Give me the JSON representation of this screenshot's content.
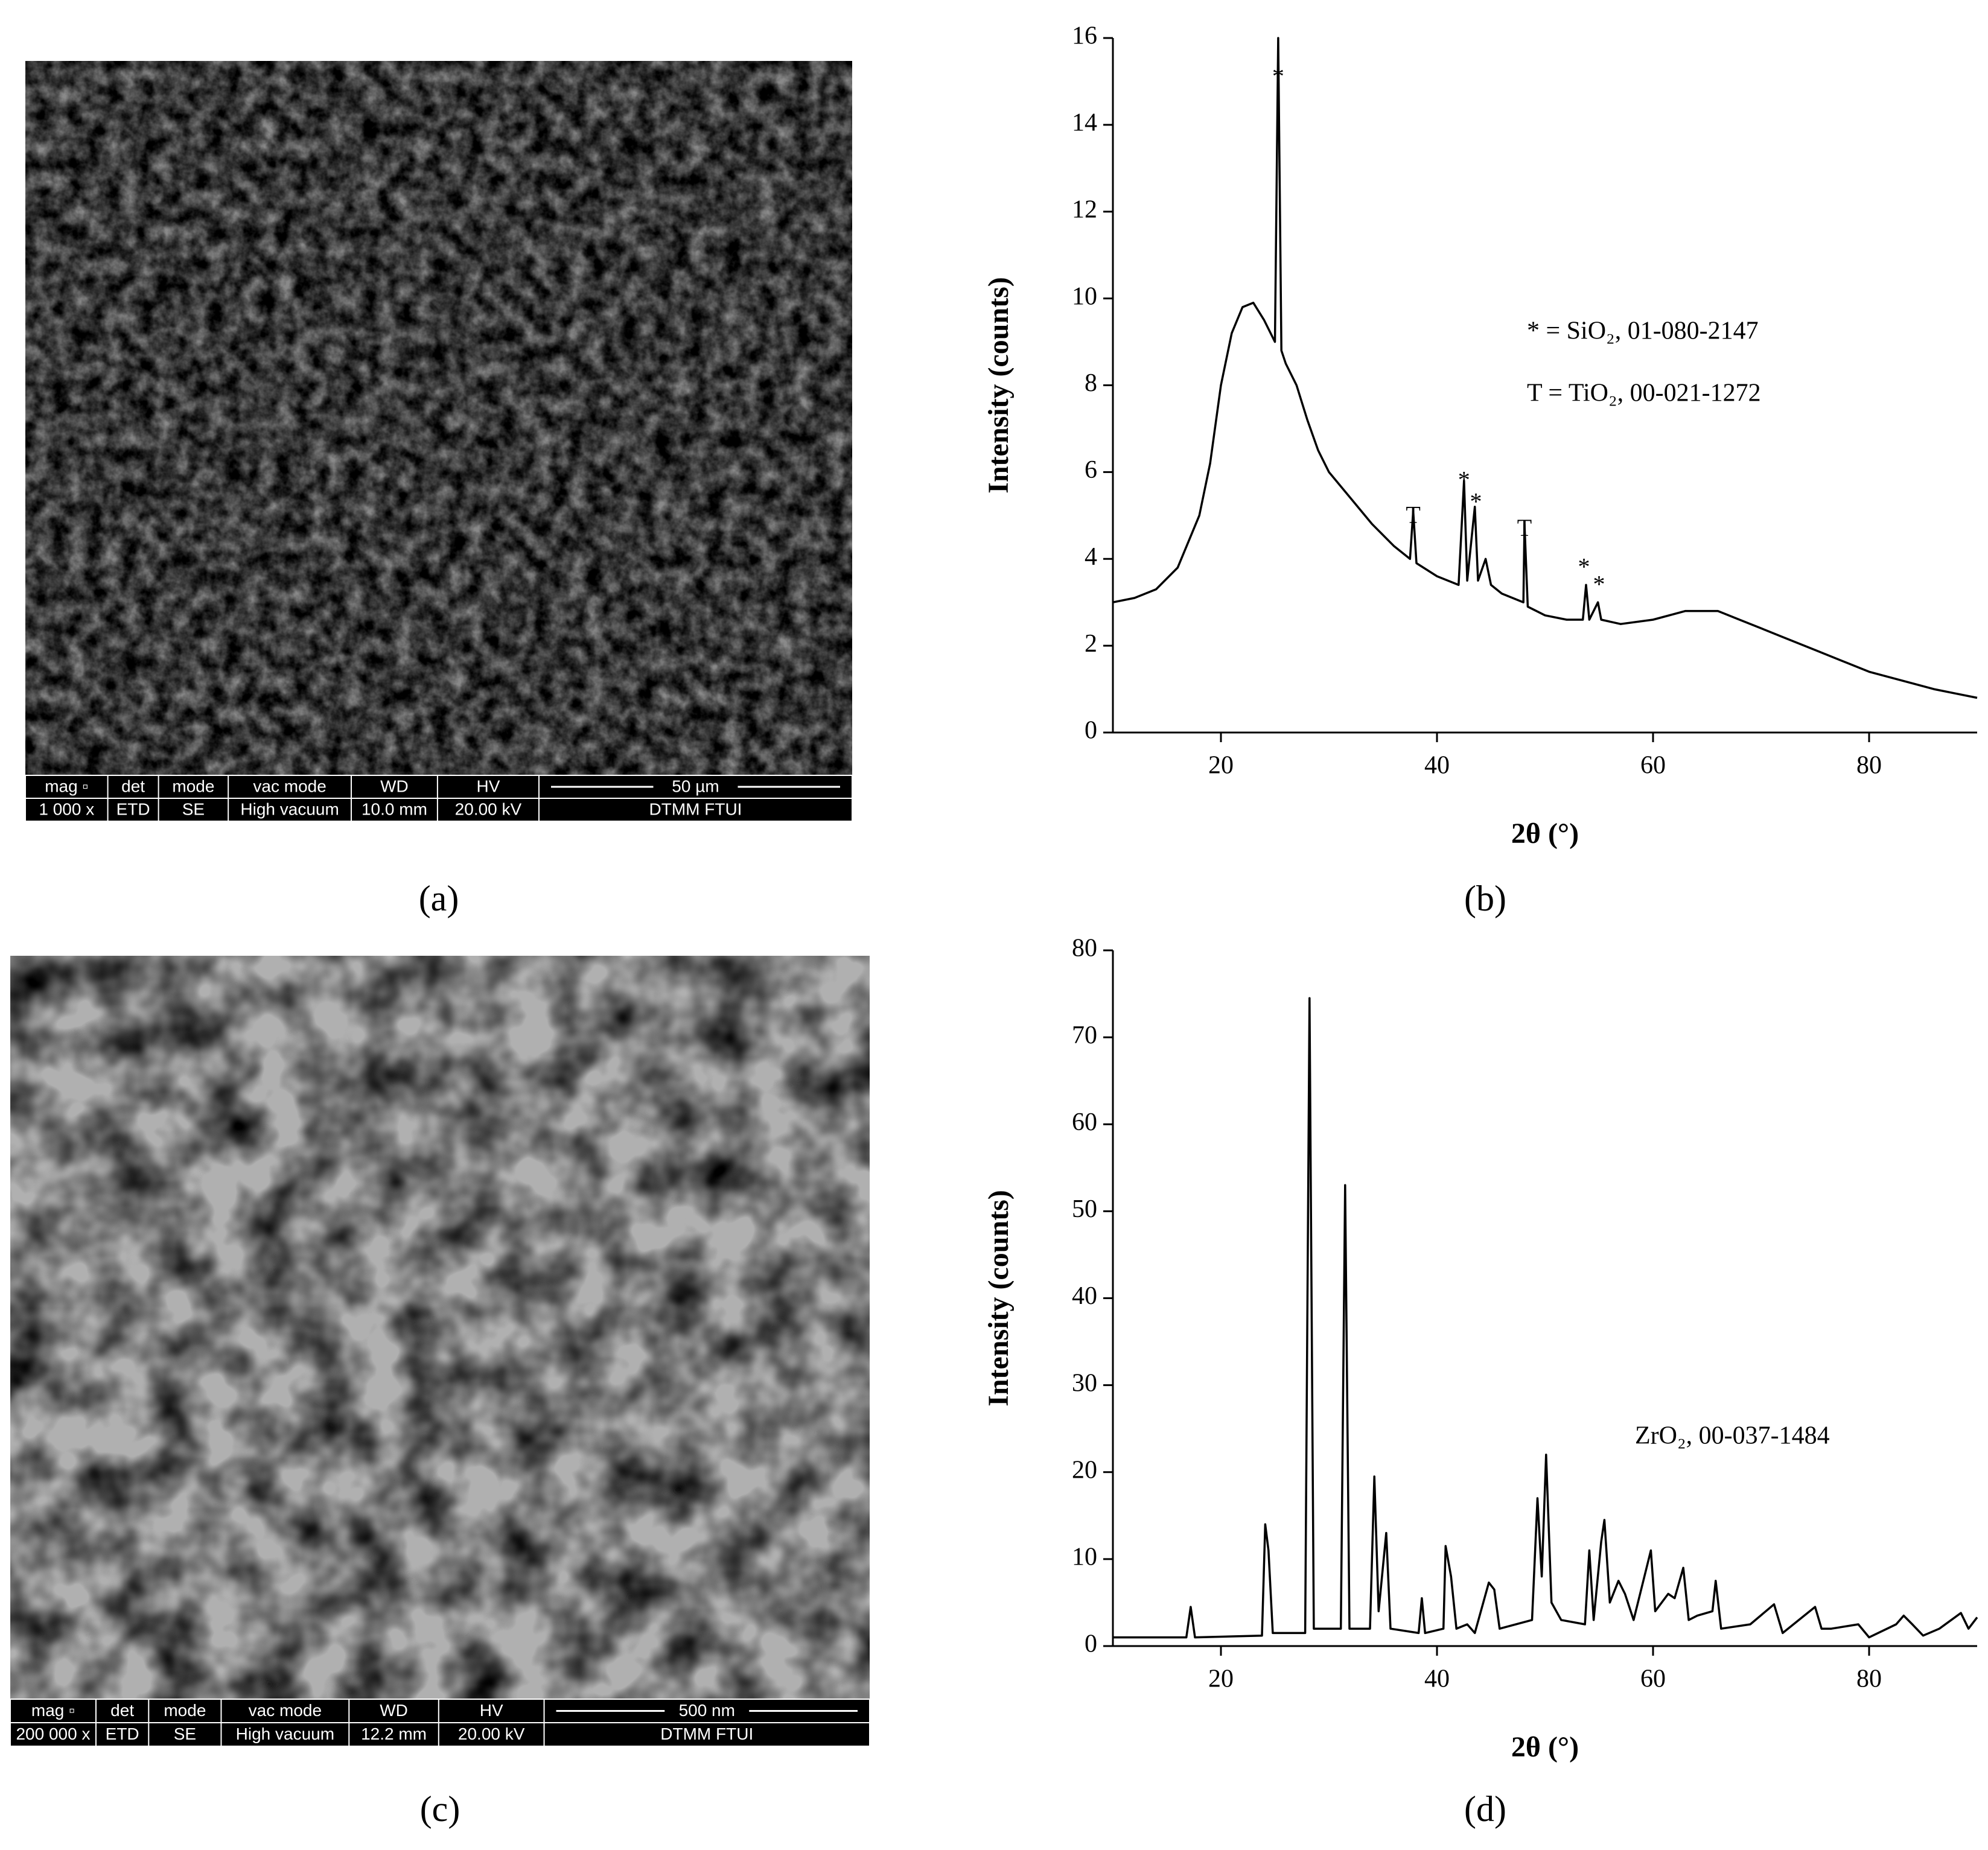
{
  "sem_images": [
    {
      "info_bar": {
        "headers": [
          "mag ▫",
          "det",
          "mode",
          "vac mode",
          "WD",
          "HV"
        ],
        "scale": "50 µm",
        "values": [
          "1 000 x",
          "ETD",
          "SE",
          "High vacuum",
          "10.0 mm",
          "20.00 kV"
        ],
        "lab": "DTMM FTUI"
      }
    },
    {
      "info_bar": {
        "headers": [
          "mag ▫",
          "det",
          "mode",
          "vac mode",
          "WD",
          "HV"
        ],
        "scale": "500 nm",
        "values": [
          "200 000 x",
          "ETD",
          "SE",
          "High vacuum",
          "12.2 mm",
          "20.00 kV"
        ],
        "lab": "DTMM FTUI"
      }
    }
  ],
  "panel_labels": [
    "(a)",
    "(b)",
    "(c)",
    "(d)"
  ],
  "chart_data": [
    {
      "type": "line",
      "x_label": "2θ (°)",
      "y_label": "Intensity (counts)",
      "color": "#000000",
      "annotations": [
        "* = SiO₂, 01-080-2147",
        "T = TiO₂, 00-021-1272"
      ],
      "peak_markers": [
        {
          "label": "*",
          "x": 25.3,
          "y": 15.2
        },
        {
          "label": "T",
          "x": 37.8,
          "y": 5.1
        },
        {
          "label": "*",
          "x": 42.5,
          "y": 5.9
        },
        {
          "label": "*",
          "x": 43.6,
          "y": 5.4
        },
        {
          "label": "T",
          "x": 48.1,
          "y": 4.8
        },
        {
          "label": "*",
          "x": 53.6,
          "y": 3.9
        },
        {
          "label": "*",
          "x": 55.0,
          "y": 3.5
        }
      ],
      "x": [
        10,
        12,
        14,
        16,
        18,
        19,
        20,
        21,
        22,
        23,
        24,
        25,
        25.3,
        25.6,
        26,
        27,
        28,
        29,
        30,
        32,
        34,
        36,
        37.5,
        37.8,
        38.1,
        40,
        42,
        42.5,
        42.8,
        43.5,
        43.8,
        44.5,
        45,
        46,
        48,
        48.1,
        48.4,
        50,
        52,
        53.5,
        53.8,
        54.1,
        54.9,
        55.2,
        57,
        60,
        63,
        66,
        68,
        70,
        72,
        75,
        78,
        80,
        83,
        86,
        88,
        90
      ],
      "values": [
        3.0,
        3.1,
        3.3,
        3.8,
        5.0,
        6.2,
        8.0,
        9.2,
        9.8,
        9.9,
        9.5,
        9.0,
        16.0,
        8.8,
        8.5,
        8.0,
        7.2,
        6.5,
        6.0,
        5.4,
        4.8,
        4.3,
        4.0,
        5.1,
        3.9,
        3.6,
        3.4,
        5.8,
        3.5,
        5.2,
        3.5,
        4.0,
        3.4,
        3.2,
        3.0,
        4.8,
        2.9,
        2.7,
        2.6,
        2.6,
        3.4,
        2.6,
        3.0,
        2.6,
        2.5,
        2.6,
        2.8,
        2.8,
        2.6,
        2.4,
        2.2,
        1.9,
        1.6,
        1.4,
        1.2,
        1.0,
        0.9,
        0.8
      ],
      "xlim": [
        10,
        90
      ],
      "xticks": [
        20,
        40,
        60,
        80
      ],
      "ylim": [
        0,
        16
      ],
      "yticks": [
        0,
        2,
        4,
        6,
        8,
        10,
        12,
        14,
        16
      ]
    },
    {
      "type": "line",
      "x_label": "2θ (°)",
      "y_label": "Intensity (counts)",
      "color": "#000000",
      "annotations": [
        "ZrO₂, 00-037-1484"
      ],
      "x": [
        10,
        16.8,
        17.2,
        17.6,
        23.8,
        24.1,
        24.4,
        24.8,
        27.8,
        28.2,
        28.6,
        31.1,
        31.5,
        31.9,
        33.8,
        34.2,
        34.6,
        35.3,
        35.7,
        38.3,
        38.6,
        38.9,
        40.6,
        40.8,
        41.3,
        41.8,
        42.8,
        43.5,
        44.8,
        45.3,
        45.8,
        48.8,
        49.3,
        49.7,
        50.1,
        50.6,
        51.5,
        53.7,
        54.1,
        54.5,
        55.2,
        55.5,
        56,
        56.8,
        57.4,
        58.2,
        59.8,
        60.2,
        61.4,
        62,
        62.8,
        63.3,
        64.1,
        65.5,
        65.8,
        66.3,
        69,
        71.2,
        72,
        75,
        75.6,
        76.5,
        79,
        80,
        82.5,
        83.2,
        84,
        85,
        86.5,
        88.5,
        89.2,
        90
      ],
      "values": [
        1,
        1,
        4.5,
        1,
        1.2,
        14,
        11,
        1.5,
        1.5,
        74.5,
        2,
        2,
        53,
        2,
        2,
        19.5,
        4,
        13,
        2,
        1.5,
        5.5,
        1.5,
        2,
        11.5,
        8,
        2,
        2.5,
        1.5,
        7.3,
        6.5,
        2,
        3,
        17,
        8,
        22,
        5,
        3,
        2.5,
        11,
        3,
        12,
        14.5,
        5,
        7.5,
        6,
        3,
        11,
        4,
        6,
        5.5,
        9,
        3,
        3.5,
        4,
        7.5,
        2,
        2.5,
        4.8,
        1.5,
        4.5,
        2,
        2,
        2.5,
        1,
        2.5,
        3.5,
        2.5,
        1.2,
        2,
        3.8,
        2,
        3.3
      ],
      "xlim": [
        10,
        90
      ],
      "xticks": [
        20,
        40,
        60,
        80
      ],
      "ylim": [
        0,
        80
      ],
      "yticks": [
        0,
        10,
        20,
        30,
        40,
        50,
        60,
        70,
        80
      ]
    }
  ]
}
